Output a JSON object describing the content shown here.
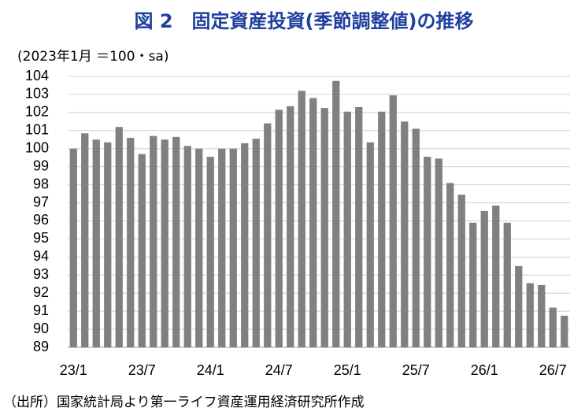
{
  "chart_data": {
    "type": "bar",
    "title": "図 2　固定資産投資(季節調整値)の推移",
    "y_label": "(2023年1月 ＝100・sa)",
    "source": "（出所）国家統計局より第一ライフ資産運用経済研究所作成",
    "categories": [
      "23/1",
      null,
      null,
      null,
      null,
      null,
      "23/7",
      null,
      null,
      null,
      null,
      null,
      "24/1",
      null,
      null,
      null,
      null,
      null,
      "24/7",
      null,
      null,
      null,
      null,
      null,
      "25/1",
      null,
      null,
      null,
      null,
      null,
      "25/7",
      null,
      null,
      null,
      null,
      null,
      "26/1",
      null,
      null,
      null,
      null,
      null,
      "26/7",
      null
    ],
    "values": [
      100.0,
      100.85,
      100.5,
      100.35,
      101.2,
      100.6,
      99.7,
      100.7,
      100.5,
      100.65,
      100.15,
      100.0,
      99.55,
      100.0,
      100.0,
      100.3,
      100.55,
      101.4,
      102.15,
      102.35,
      103.2,
      102.8,
      102.25,
      103.75,
      102.05,
      102.3,
      100.35,
      102.05,
      102.95,
      101.5,
      101.1,
      99.55,
      99.45,
      98.1,
      97.45,
      95.9,
      96.55,
      96.85,
      95.9,
      93.5,
      92.55,
      92.45,
      91.2,
      90.75
    ],
    "color": "#808080",
    "ylim": [
      89,
      104
    ],
    "yticks": [
      89,
      90,
      91,
      92,
      93,
      94,
      95,
      96,
      97,
      98,
      99,
      100,
      101,
      102,
      103,
      104
    ],
    "grid": true
  }
}
